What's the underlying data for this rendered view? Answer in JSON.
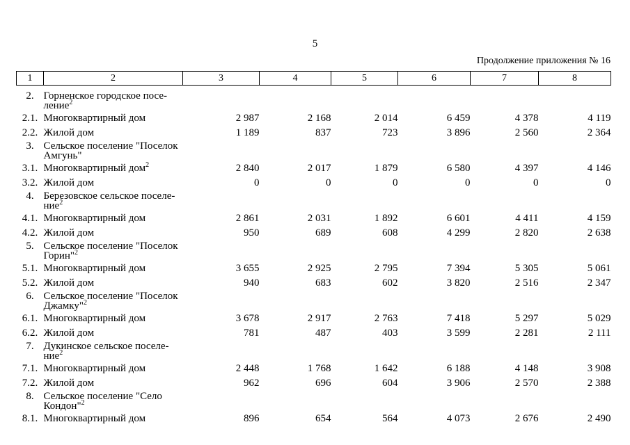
{
  "page": {
    "number": "5",
    "continuation_note": "Продолжение приложения № 16"
  },
  "table": {
    "header": [
      "1",
      "2",
      "3",
      "4",
      "5",
      "6",
      "7",
      "8"
    ],
    "rows": [
      {
        "num": "2.",
        "type": "section",
        "name": "Горненское городское посе-\nление",
        "sup": "2"
      },
      {
        "num": "2.1.",
        "type": "item",
        "name": "Многоквартирный дом",
        "values": [
          "2 987",
          "2 168",
          "2 014",
          "6 459",
          "4 378",
          "4 119"
        ]
      },
      {
        "num": "2.2.",
        "type": "item",
        "name": "Жилой дом",
        "values": [
          "1 189",
          "837",
          "723",
          "3 896",
          "2 560",
          "2 364"
        ]
      },
      {
        "num": "3.",
        "type": "section",
        "name": "Сельское поселение \"Поселок\nАмгунь\""
      },
      {
        "num": "3.1.",
        "type": "item",
        "name": "Многоквартирный дом",
        "sup": "2",
        "values": [
          "2 840",
          "2 017",
          "1 879",
          "6 580",
          "4 397",
          "4 146"
        ]
      },
      {
        "num": "3.2.",
        "type": "item",
        "name": "Жилой дом",
        "values": [
          "0",
          "0",
          "0",
          "0",
          "0",
          "0"
        ]
      },
      {
        "num": "4.",
        "type": "section",
        "name": "Березовское сельское поселе-\nние",
        "sup": "2"
      },
      {
        "num": "4.1.",
        "type": "item",
        "name": "Многоквартирный дом",
        "values": [
          "2 861",
          "2 031",
          "1 892",
          "6 601",
          "4 411",
          "4 159"
        ]
      },
      {
        "num": "4.2.",
        "type": "item",
        "name": "Жилой дом",
        "values": [
          "950",
          "689",
          "608",
          "4 299",
          "2 820",
          "2 638"
        ]
      },
      {
        "num": "5.",
        "type": "section",
        "name": "Сельское поселение \"Поселок\nГорин\"",
        "sup": "2"
      },
      {
        "num": "5.1.",
        "type": "item",
        "name": "Многоквартирный дом",
        "values": [
          "3 655",
          "2 925",
          "2 795",
          "7 394",
          "5 305",
          "5 061"
        ]
      },
      {
        "num": "5.2.",
        "type": "item",
        "name": "Жилой дом",
        "values": [
          "940",
          "683",
          "602",
          "3 820",
          "2 516",
          "2 347"
        ]
      },
      {
        "num": "6.",
        "type": "section",
        "name": "Сельское поселение \"Поселок\nДжамку\"",
        "sup": "2"
      },
      {
        "num": "6.1.",
        "type": "item",
        "name": "Многоквартирный дом",
        "values": [
          "3 678",
          "2 917",
          "2 763",
          "7 418",
          "5 297",
          "5 029"
        ]
      },
      {
        "num": "6.2.",
        "type": "item",
        "name": "Жилой дом",
        "values": [
          "781",
          "487",
          "403",
          "3 599",
          "2 281",
          "2 111"
        ]
      },
      {
        "num": "7.",
        "type": "section",
        "name": "Дукинское сельское поселе-\nние",
        "sup": "2"
      },
      {
        "num": "7.1.",
        "type": "item",
        "name": "Многоквартирный дом",
        "values": [
          "2 448",
          "1 768",
          "1 642",
          "6 188",
          "4 148",
          "3 908"
        ]
      },
      {
        "num": "7.2.",
        "type": "item",
        "name": "Жилой дом",
        "values": [
          "962",
          "696",
          "604",
          "3 906",
          "2 570",
          "2 388"
        ]
      },
      {
        "num": "8.",
        "type": "section",
        "name": "Сельское поселение \"Село\nКондон\"",
        "sup": "2"
      },
      {
        "num": "8.1.",
        "type": "item",
        "name": "Многоквартирный дом",
        "values": [
          "896",
          "654",
          "564",
          "4 073",
          "2 676",
          "2 490"
        ]
      }
    ]
  }
}
